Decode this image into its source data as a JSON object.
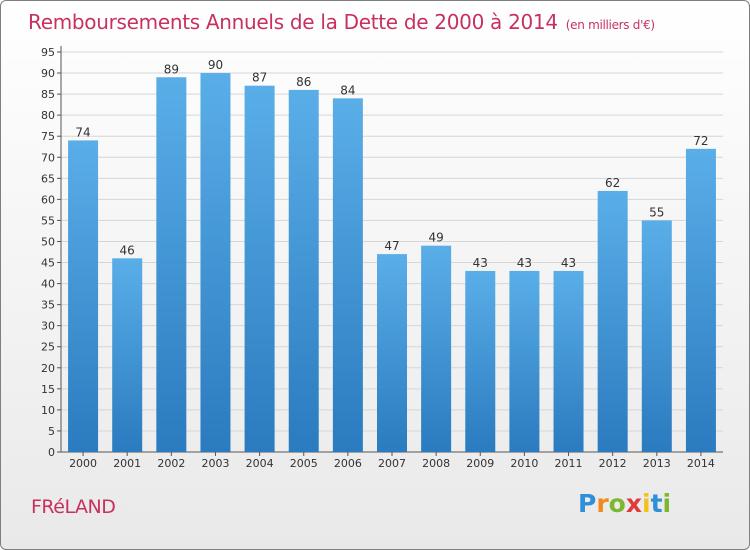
{
  "title": "Remboursements Annuels de la Dette de 2000 à 2014",
  "unit": "(en milliers d'€)",
  "commune": "FRéLAND",
  "logo": {
    "text": "Proxiti",
    "letters": [
      {
        "ch": "P",
        "color": "#2f8fd8"
      },
      {
        "ch": "r",
        "color": "#f08a1c"
      },
      {
        "ch": "o",
        "color": "#7cb82f"
      },
      {
        "ch": "x",
        "color": "#e03a3a"
      },
      {
        "ch": "i",
        "color": "#f4c21b"
      },
      {
        "ch": "t",
        "color": "#2f8fd8"
      },
      {
        "ch": "i",
        "color": "#7cb82f"
      }
    ]
  },
  "chart_data": {
    "type": "bar",
    "title": "Remboursements Annuels de la Dette de 2000 à 2014",
    "categories": [
      "2000",
      "2001",
      "2002",
      "2003",
      "2004",
      "2005",
      "2006",
      "2007",
      "2008",
      "2009",
      "2010",
      "2011",
      "2012",
      "2013",
      "2014"
    ],
    "values": [
      74,
      46,
      89,
      90,
      87,
      86,
      84,
      47,
      49,
      43,
      43,
      43,
      62,
      55,
      72
    ],
    "ylim": [
      0,
      95
    ],
    "yticks": [
      0,
      5,
      10,
      15,
      20,
      25,
      30,
      35,
      40,
      45,
      50,
      55,
      60,
      65,
      70,
      75,
      80,
      85,
      90,
      95
    ],
    "grid": true,
    "bar_color_top": "#5aaee8",
    "bar_color_bottom": "#2a7bbf",
    "title_color": "#c8315f"
  }
}
